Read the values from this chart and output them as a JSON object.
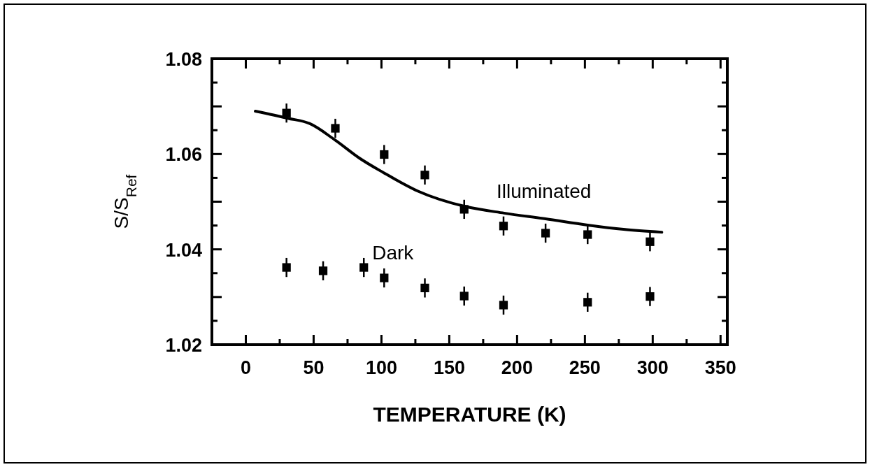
{
  "chart_data": {
    "type": "scatter",
    "xlabel": "TEMPERATURE (K)",
    "ylabel": "S/S$_{Ref}$",
    "xlim": [
      -25,
      355
    ],
    "xticks": [
      0,
      50,
      100,
      150,
      200,
      250,
      300,
      350
    ],
    "ylim": [
      1.02,
      1.08
    ],
    "yticks": [
      1.02,
      {
        "value": 1.03,
        "label": null
      },
      1.04,
      {
        "value": 1.05,
        "label": null
      },
      1.06,
      {
        "value": 1.07,
        "label": null
      },
      1.08
    ],
    "marker": "square",
    "grid": false,
    "series": [
      {
        "name": "Illuminated",
        "color": "#000000",
        "x": [
          30,
          66,
          102,
          132,
          161,
          190,
          221,
          252,
          298
        ],
        "values": [
          1.0686,
          1.0654,
          1.0599,
          1.0556,
          1.0484,
          1.0449,
          1.0434,
          1.0431,
          1.0416
        ],
        "errors": [
          0.002,
          0.002,
          0.002,
          0.002,
          0.002,
          0.002,
          0.002,
          0.002,
          0.002
        ]
      },
      {
        "name": "Dark",
        "color": "#000000",
        "x": [
          30,
          57,
          87,
          102,
          132,
          161,
          190,
          252,
          298
        ],
        "values": [
          1.0362,
          1.0355,
          1.0362,
          1.034,
          1.0319,
          1.0302,
          1.0283,
          1.0289,
          1.0301
        ],
        "errors": [
          0.002,
          0.002,
          0.002,
          0.002,
          0.002,
          0.002,
          0.002,
          0.002,
          0.002
        ]
      },
      {
        "type": "line",
        "color": "#000000",
        "line_style": "solid",
        "marker": "none",
        "x": [
          7,
          31,
          47,
          65.5,
          84,
          101.5,
          127,
          161.6,
          190.5,
          221,
          252,
          278.5,
          306.7
        ],
        "values": [
          1.069,
          1.0675,
          1.0664,
          1.063,
          1.0591,
          1.0561,
          1.0522,
          1.049,
          1.0476,
          1.0464,
          1.0451,
          1.0442,
          1.0436
        ]
      }
    ]
  }
}
